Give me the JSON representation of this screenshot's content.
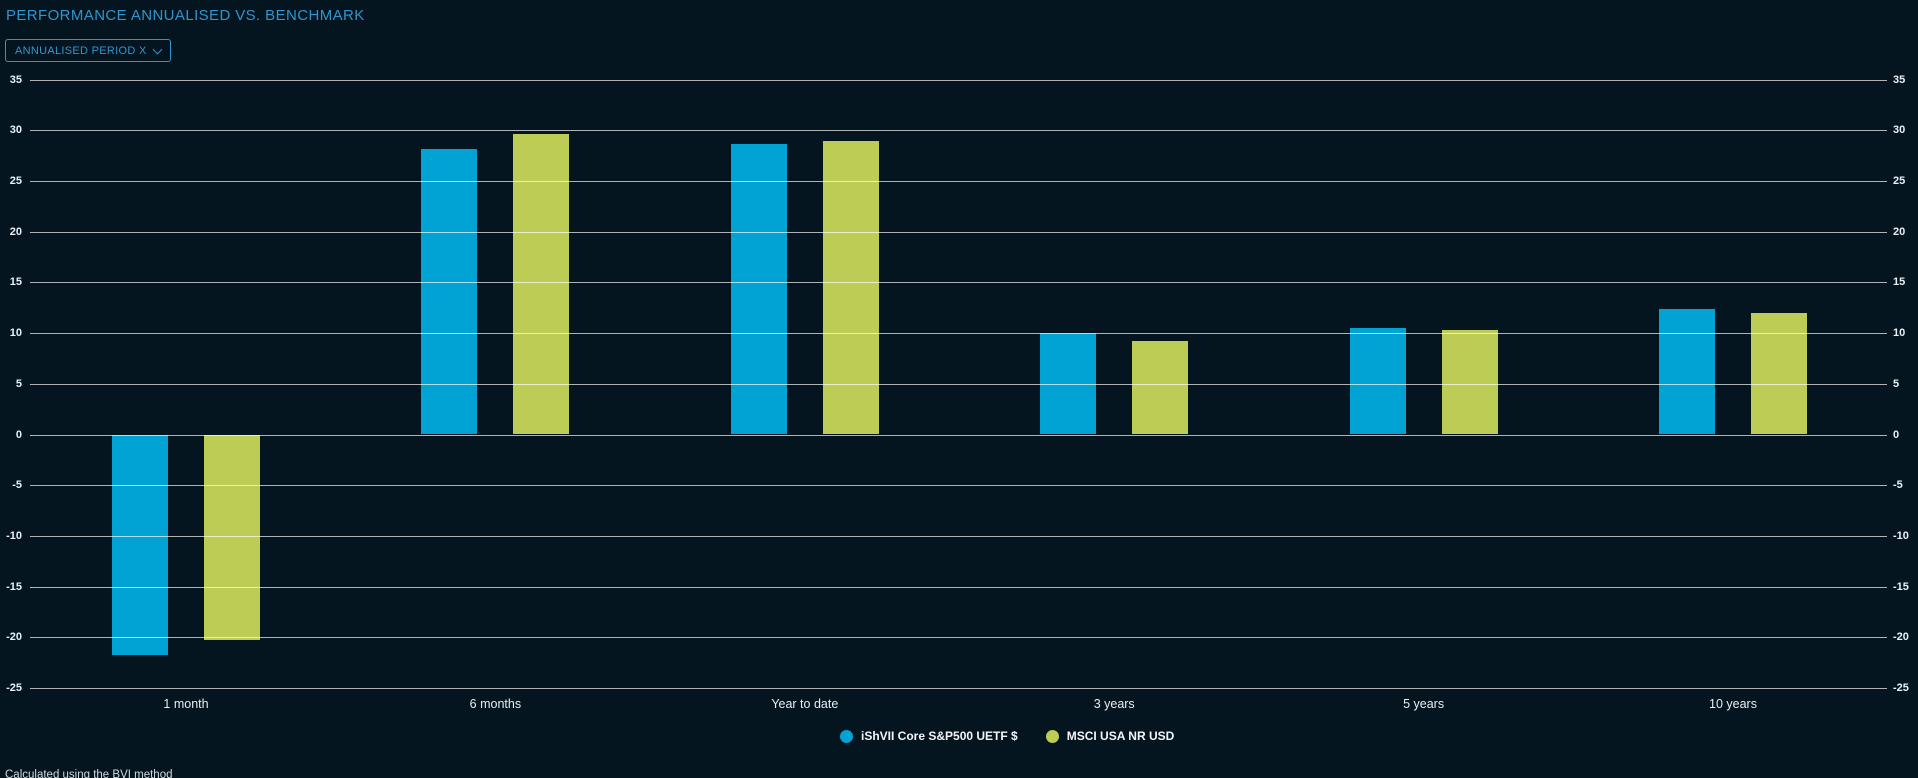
{
  "header": {
    "title": "PERFORMANCE ANNUALISED VS. BENCHMARK",
    "period_dropdown_label": "ANNUALISED PERIOD X"
  },
  "chart_data": {
    "type": "bar",
    "title": "PERFORMANCE ANNUALISED VS. BENCHMARK",
    "categories": [
      "1 month",
      "6 months",
      "Year to date",
      "3 years",
      "5 years",
      "10 years"
    ],
    "series": [
      {
        "name": "iShVII Core S&P500 UETF $",
        "color": "#00a3d4",
        "values": [
          -21.8,
          28.2,
          28.7,
          10.0,
          10.5,
          12.4
        ]
      },
      {
        "name": "MSCI USA NR USD",
        "color": "#bccc55",
        "values": [
          -20.3,
          29.6,
          29.0,
          9.2,
          10.3,
          12.0
        ]
      }
    ],
    "xlabel": "",
    "ylabel": "",
    "ylim": [
      -25,
      35
    ],
    "yticks": [
      35,
      30,
      25,
      20,
      15,
      10,
      5,
      0,
      -5,
      -10,
      -15,
      -20,
      -25
    ],
    "grid": true,
    "y_axis_labels": "both-sides",
    "legend_position": "bottom"
  },
  "footer": {
    "disclaimer": "Calculated using the BVI method"
  },
  "colors": {
    "background": "#041520",
    "accent_blue": "#2e96ce",
    "series_fund": "#00a3d4",
    "series_benchmark": "#bccc55",
    "gridline": "rgba(255,255,255,0.68)"
  }
}
